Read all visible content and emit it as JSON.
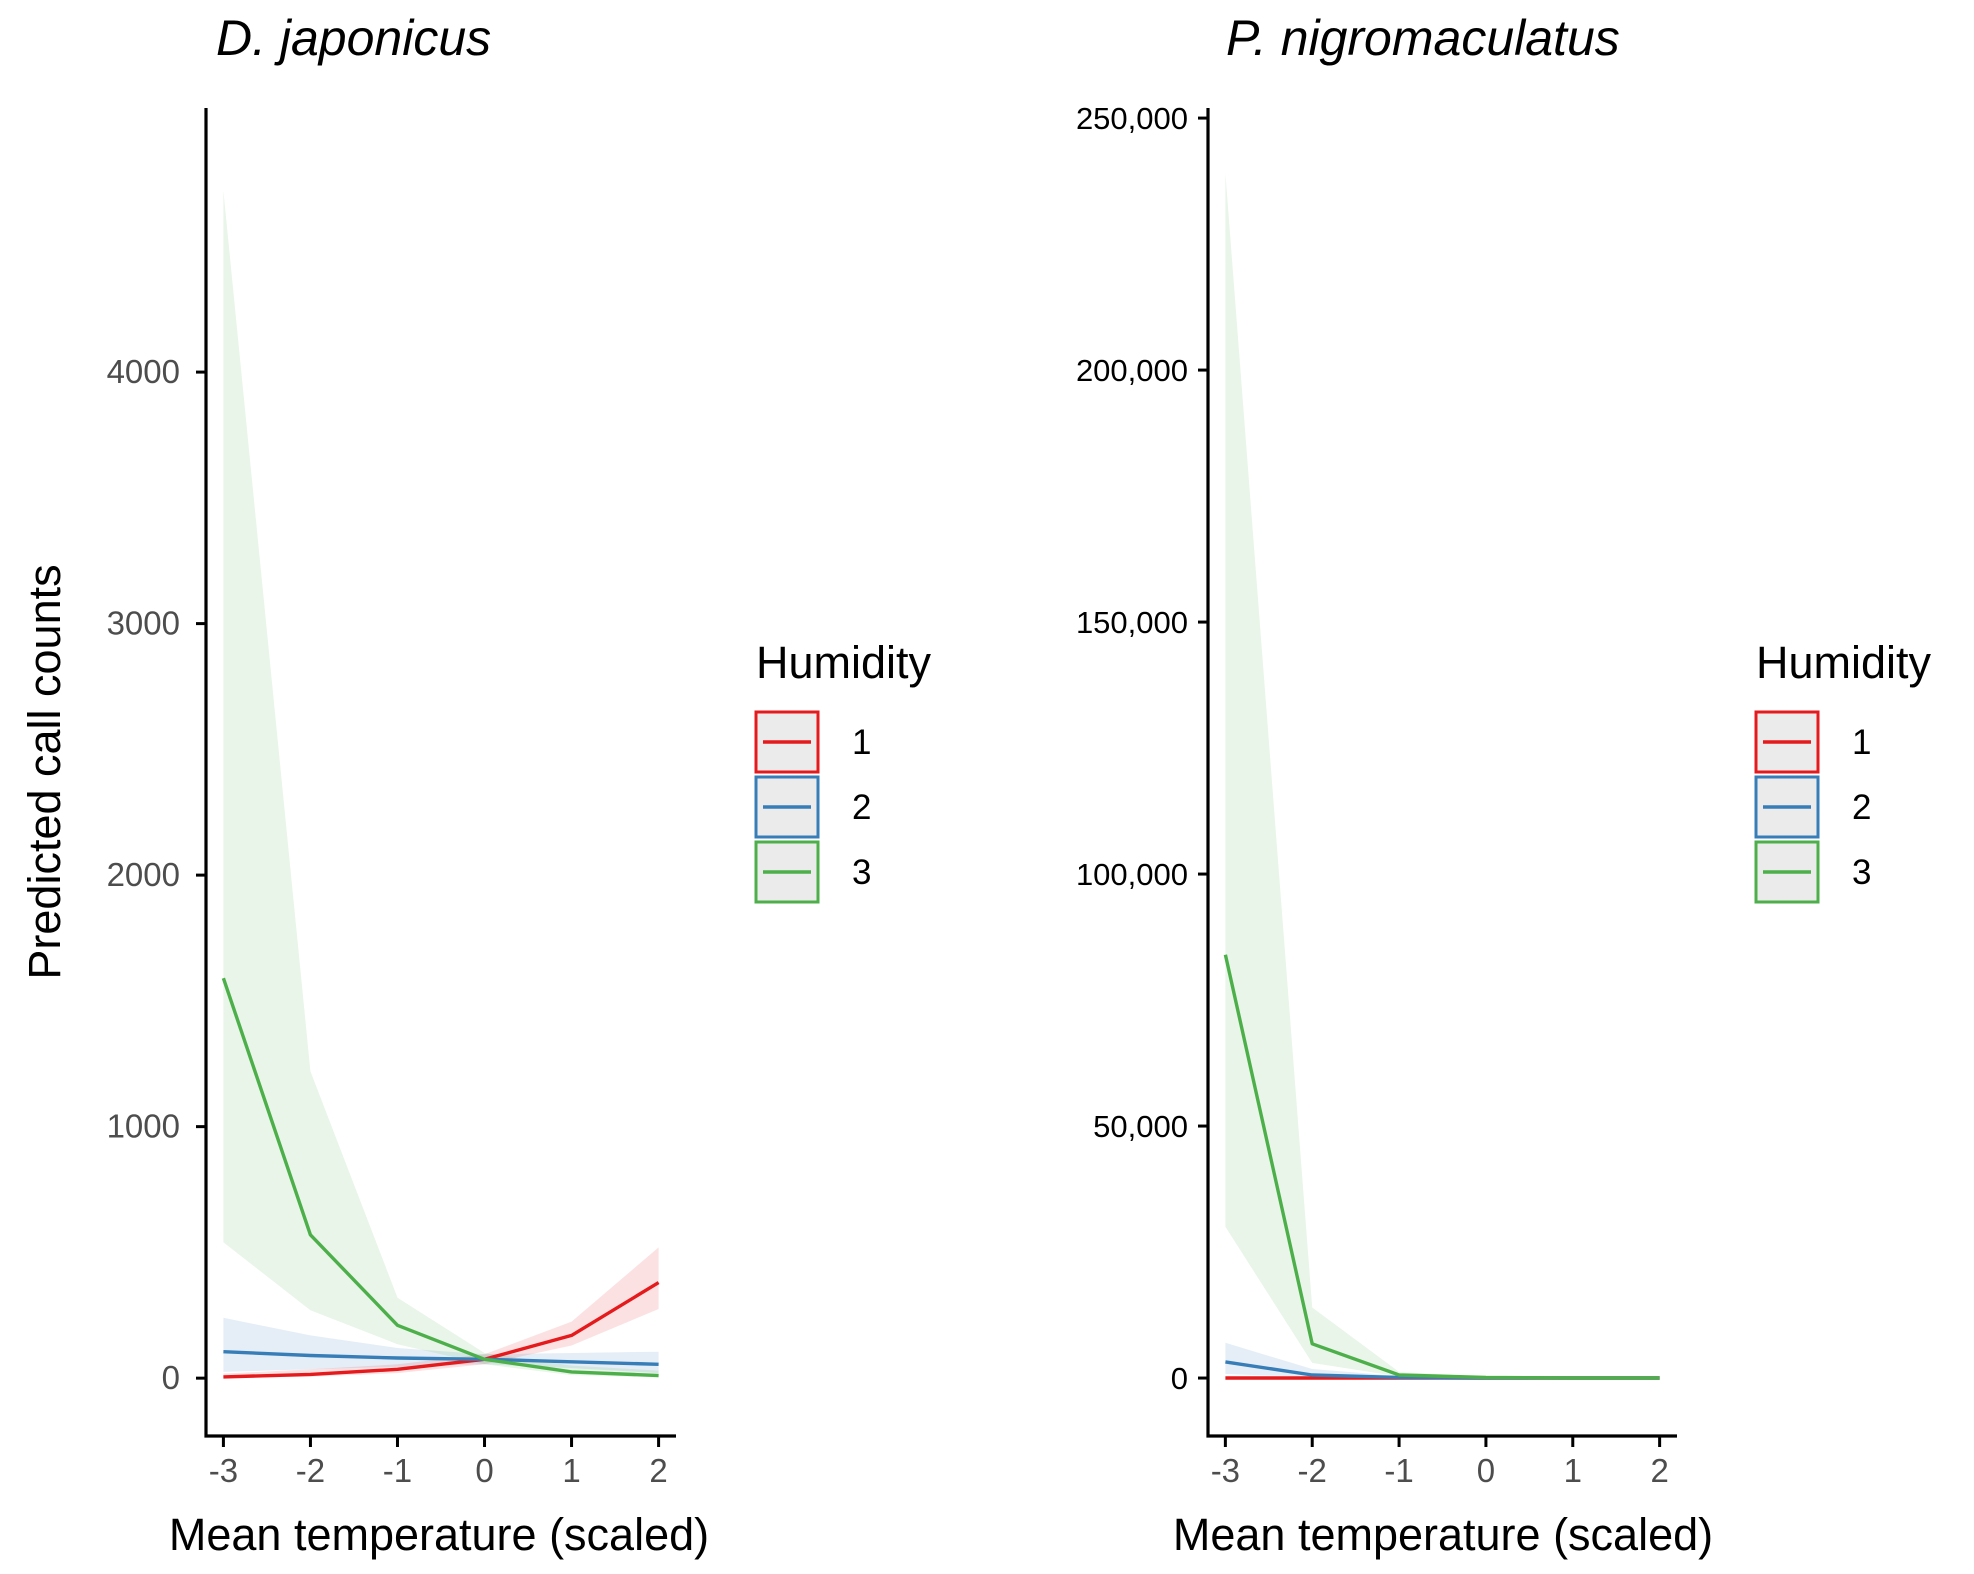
{
  "chart_data": [
    {
      "type": "line",
      "title": "D. japonicus",
      "xlabel": "Mean temperature (scaled)",
      "ylabel": "Predicted call counts",
      "x": [
        -3,
        -2,
        -1,
        0,
        1,
        2
      ],
      "xlim": [
        -3.2,
        2.2
      ],
      "ylim": [
        -230,
        5050
      ],
      "xticks": [
        -3,
        -2,
        -1,
        0,
        1,
        2
      ],
      "xtick_labels": [
        "-3",
        "-2",
        "-1",
        "0",
        "1",
        "2"
      ],
      "yticks": [
        0,
        1000,
        2000,
        3000,
        4000
      ],
      "ytick_labels": [
        "0",
        "1000",
        "2000",
        "3000",
        "4000"
      ],
      "legend_title": "Humidity",
      "series": [
        {
          "name": "1",
          "color": "#e41a1c",
          "fill": "#e41a1c",
          "values": [
            5,
            15,
            35,
            75,
            170,
            380
          ],
          "lower": [
            1,
            6,
            20,
            55,
            130,
            275
          ],
          "upper": [
            18,
            35,
            55,
            95,
            225,
            520
          ]
        },
        {
          "name": "2",
          "color": "#377eb8",
          "fill": "#377eb8",
          "values": [
            105,
            90,
            80,
            75,
            65,
            55
          ],
          "lower": [
            25,
            35,
            45,
            55,
            40,
            20
          ],
          "upper": [
            240,
            170,
            120,
            95,
            100,
            105
          ]
        },
        {
          "name": "3",
          "color": "#4daf4a",
          "fill": "#4daf4a",
          "values": [
            1590,
            570,
            210,
            75,
            25,
            10
          ],
          "lower": [
            540,
            270,
            135,
            55,
            12,
            3
          ],
          "upper": [
            4720,
            1220,
            320,
            100,
            50,
            30
          ]
        }
      ]
    },
    {
      "type": "line",
      "title": "P. nigromaculatus",
      "xlabel": "Mean temperature (scaled)",
      "ylabel": "",
      "x": [
        -3,
        -2,
        -1,
        0,
        1,
        2
      ],
      "xlim": [
        -3.2,
        2.2
      ],
      "ylim": [
        -11500,
        252000
      ],
      "xticks": [
        -3,
        -2,
        -1,
        0,
        1,
        2
      ],
      "xtick_labels": [
        "-3",
        "-2",
        "-1",
        "0",
        "1",
        "2"
      ],
      "yticks": [
        0,
        50000,
        100000,
        150000,
        200000,
        250000
      ],
      "ytick_labels": [
        "0",
        "50,000",
        "100,000",
        "150,000",
        "200,000",
        "250,000"
      ],
      "legend_title": "Humidity",
      "series": [
        {
          "name": "1",
          "color": "#e41a1c",
          "fill": "#e41a1c",
          "values": [
            0,
            0,
            0,
            0,
            0,
            0
          ],
          "lower": [
            0,
            0,
            0,
            0,
            0,
            0
          ],
          "upper": [
            50,
            50,
            50,
            50,
            50,
            50
          ]
        },
        {
          "name": "2",
          "color": "#377eb8",
          "fill": "#377eb8",
          "values": [
            3200,
            600,
            100,
            0,
            0,
            0
          ],
          "lower": [
            800,
            200,
            30,
            0,
            0,
            0
          ],
          "upper": [
            7000,
            1800,
            400,
            80,
            30,
            20
          ]
        },
        {
          "name": "3",
          "color": "#4daf4a",
          "fill": "#4daf4a",
          "values": [
            84000,
            6800,
            600,
            100,
            0,
            0
          ],
          "lower": [
            30000,
            3000,
            300,
            30,
            0,
            0
          ],
          "upper": [
            239000,
            14000,
            1200,
            250,
            50,
            30
          ]
        }
      ]
    }
  ]
}
